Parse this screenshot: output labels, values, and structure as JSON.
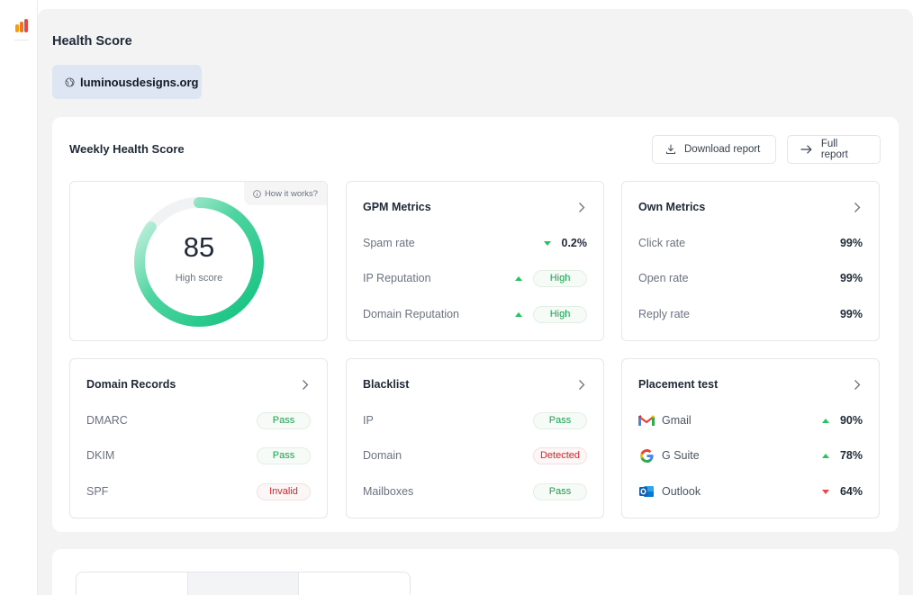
{
  "page": {
    "title": "Health Score",
    "domain": "luminousdesigns.org"
  },
  "panel": {
    "title": "Weekly Health Score",
    "download_label": "Download report",
    "full_label": "Full report"
  },
  "score_card": {
    "value": "85",
    "label": "High score",
    "how_label": "How it works?",
    "score_fraction": 0.85
  },
  "gpm": {
    "title": "GPM Metrics",
    "rows": [
      {
        "label": "Spam rate",
        "value": "0.2%",
        "trend": "down"
      },
      {
        "label": "IP Reputation",
        "value": "High",
        "trend": "up"
      },
      {
        "label": "Domain Reputation",
        "value": "High",
        "trend": "up"
      }
    ]
  },
  "own": {
    "title": "Own Metrics",
    "rows": [
      {
        "label": "Click rate",
        "value": "99%"
      },
      {
        "label": "Open rate",
        "value": "99%"
      },
      {
        "label": "Reply rate",
        "value": "99%"
      }
    ]
  },
  "domain_records": {
    "title": "Domain Records",
    "rows": [
      {
        "label": "DMARC",
        "value": "Pass",
        "status": "green"
      },
      {
        "label": "DKIM",
        "value": "Pass",
        "status": "green"
      },
      {
        "label": "SPF",
        "value": "Invalid",
        "status": "red"
      }
    ]
  },
  "blacklist": {
    "title": "Blacklist",
    "rows": [
      {
        "label": "IP",
        "value": "Pass",
        "status": "green"
      },
      {
        "label": "Domain",
        "value": "Detected",
        "status": "red"
      },
      {
        "label": "Mailboxes",
        "value": "Pass",
        "status": "green"
      }
    ]
  },
  "placement": {
    "title": "Placement test",
    "rows": [
      {
        "label": "Gmail",
        "value": "90%",
        "trend": "up",
        "icon": "gmail-icon"
      },
      {
        "label": "G Suite",
        "value": "78%",
        "trend": "up",
        "icon": "google-icon"
      },
      {
        "label": "Outlook",
        "value": "64%",
        "trend": "down",
        "icon": "outlook-icon"
      }
    ]
  },
  "colors": {
    "accent_green": "#22c55e",
    "danger_red": "#ef4444",
    "chip_bg": "#dee5f3",
    "gauge_start": "#10c27f",
    "gauge_end": "#d8f5ea"
  }
}
